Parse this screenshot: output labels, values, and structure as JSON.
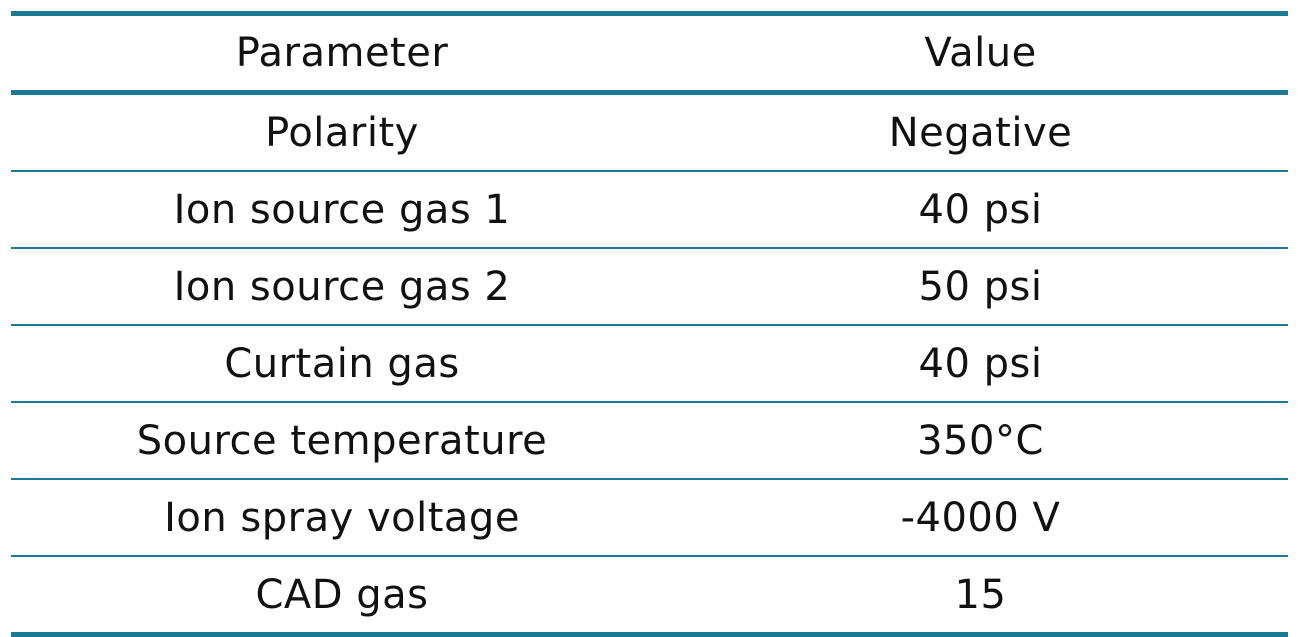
{
  "table": {
    "headers": [
      "Parameter",
      "Value"
    ],
    "rows": [
      [
        "Polarity",
        "Negative"
      ],
      [
        "Ion source gas 1",
        "40 psi"
      ],
      [
        "Ion source gas 2",
        "50 psi"
      ],
      [
        "Curtain gas",
        "40 psi"
      ],
      [
        "Source temperature",
        "350°C"
      ],
      [
        "Ion spray voltage",
        "-4000 V"
      ],
      [
        "CAD gas",
        "15"
      ]
    ]
  },
  "colors": {
    "rule": "#1d7a97",
    "text": "#111111",
    "background": "#ffffff"
  }
}
